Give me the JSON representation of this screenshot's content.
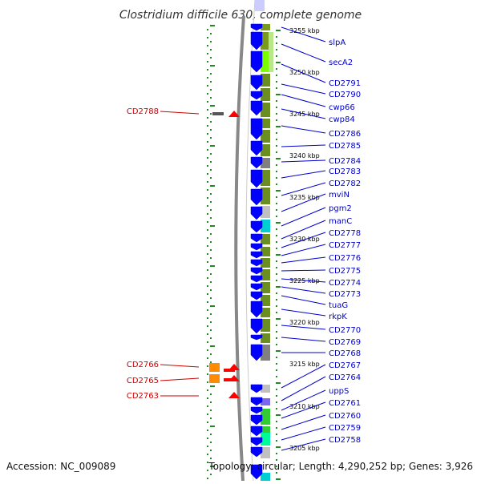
{
  "title": "Clostridium difficile 630, complete genome",
  "accession": "Accession: NC_009089",
  "summary": "Topology: circular; Length: 4,290,252 bp; Genes: 3,926",
  "colors": {
    "forward_gene": "#0000ff",
    "reverse_gene": "#ff0000",
    "forward_label": "#0000cc",
    "reverse_label": "#cc0000",
    "tick": "#228822",
    "backbone": "#888888"
  },
  "kbp_markers": [
    "3255 kbp",
    "3250 kbp",
    "3245 kbp",
    "3240 kbp",
    "3235 kbp",
    "3230 kbp",
    "3225 kbp",
    "3220 kbp",
    "3215 kbp",
    "3210 kbp",
    "3205 kbp"
  ],
  "forward_labels": [
    "slpA",
    "secA2",
    "CD2791",
    "CD2790",
    "cwp66",
    "cwp84",
    "CD2786",
    "CD2785",
    "CD2784",
    "CD2783",
    "CD2782",
    "mviN",
    "pgm2",
    "manC",
    "CD2778",
    "CD2777",
    "CD2776",
    "CD2775",
    "CD2774",
    "CD2773",
    "tuaG",
    "rkpK",
    "CD2770",
    "CD2769",
    "CD2768",
    "CD2767",
    "CD2764",
    "uppS",
    "CD2761",
    "CD2760",
    "CD2759",
    "CD2758"
  ],
  "reverse_labels": [
    "CD2788",
    "CD2766",
    "CD2765",
    "CD2763"
  ],
  "cog_colors": [
    "#7a9a1f",
    "#8fbc23",
    "#7cfc00",
    "#6b8e23",
    "#808080",
    "#00ced1",
    "#c0c0c0",
    "#ff8c00",
    "#7b68ee",
    "#32cd32",
    "#00fa9a"
  ]
}
